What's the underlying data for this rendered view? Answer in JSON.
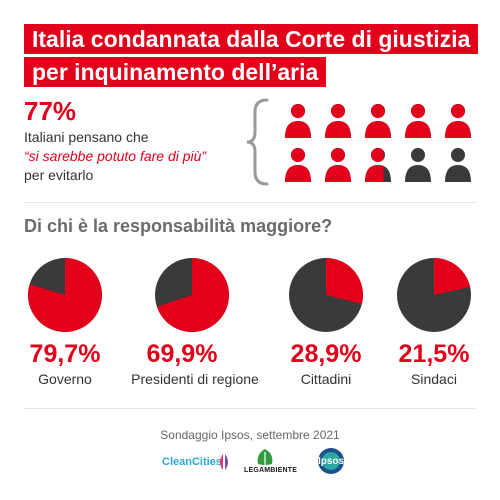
{
  "title": {
    "line1": "Italia condannata dalla Corte di giustizia",
    "line2": "per inquinamento dell’aria"
  },
  "stat": {
    "value": "77%",
    "line1": "Italiani pensano che",
    "quote": "“si sarebbe potuto fare di più”",
    "line3": "per evitarlo",
    "share": 0.77
  },
  "colors": {
    "accent": "#e2001a",
    "dark": "#3a3a3a",
    "text": "#333333",
    "muted": "#6b6b6b"
  },
  "question": "Di chi è la responsabilità maggiore?",
  "chart_data": {
    "type": "pie",
    "items": [
      {
        "label": "Governo",
        "value_label": "79,7%",
        "value": 79.7
      },
      {
        "label": "Presidenti di regione",
        "value_label": "69,9%",
        "value": 69.9
      },
      {
        "label": "Cittadini",
        "value_label": "28,9%",
        "value": 28.9
      },
      {
        "label": "Sindaci",
        "value_label": "21,5%",
        "value": 21.5
      }
    ]
  },
  "source": "Sondaggio Ipsos, settembre 2021",
  "logos": {
    "cleancities": "CleanCities",
    "legambiente": "LEGAMBIENTE",
    "ipsos": "Ipsos"
  }
}
